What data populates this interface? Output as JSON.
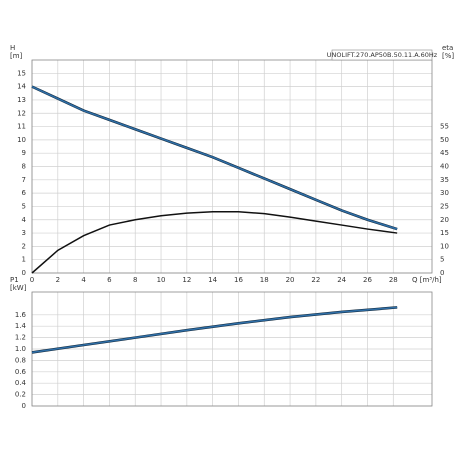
{
  "chart_data": [
    {
      "type": "line",
      "annotation": "UNOLIFT.270.AP50B.50.11.A.60Hz",
      "y_label": "H",
      "y_unit": "[m]",
      "y2_label": "eta",
      "y2_unit": "[%]",
      "x_label": "Q [m³/h]",
      "x": [
        0,
        2,
        4,
        6,
        8,
        10,
        12,
        14,
        16,
        18,
        20,
        22,
        24,
        26,
        28.3
      ],
      "series": [
        {
          "color": "#2f6ea6",
          "values": [
            14,
            13.1,
            12.2,
            11.5,
            10.8,
            10.1,
            9.4,
            8.7,
            7.9,
            7.1,
            6.3,
            5.5,
            4.7,
            4.0,
            3.3
          ]
        },
        {
          "color": "#111111",
          "axis": "y2",
          "values": [
            0,
            8.5,
            14,
            18,
            20,
            21.5,
            22.5,
            23,
            23,
            22.3,
            21,
            19.5,
            18,
            16.5,
            15
          ]
        }
      ],
      "xlim": [
        0,
        31
      ],
      "xticks": [
        0,
        2,
        4,
        6,
        8,
        10,
        12,
        14,
        16,
        18,
        20,
        22,
        24,
        26,
        28
      ],
      "ylim": [
        0,
        16
      ],
      "yticks": [
        0,
        1,
        2,
        3,
        4,
        5,
        6,
        7,
        8,
        9,
        10,
        11,
        12,
        13,
        14,
        15
      ],
      "y2lim": [
        0,
        80
      ],
      "y2ticks": [
        0,
        5,
        10,
        15,
        20,
        25,
        30,
        35,
        40,
        45,
        50,
        55
      ],
      "grid": true
    },
    {
      "type": "line",
      "y_label": "P1",
      "y_unit": "[kW]",
      "x": [
        0,
        4,
        8,
        12,
        16,
        20,
        24,
        28.3
      ],
      "series": [
        {
          "color": "#2f6ea6",
          "values": [
            0.94,
            1.07,
            1.2,
            1.33,
            1.45,
            1.56,
            1.65,
            1.73
          ]
        }
      ],
      "xlim": [
        0,
        31
      ],
      "xticks": [
        0,
        2,
        4,
        6,
        8,
        10,
        12,
        14,
        16,
        18,
        20,
        22,
        24,
        26,
        28
      ],
      "ylim": [
        0,
        2
      ],
      "yticks": [
        0,
        0.2,
        0.4,
        0.6,
        0.8,
        {
          "value": 1,
          "label": "1.0"
        },
        1.2,
        1.4,
        1.6
      ],
      "grid": true
    }
  ]
}
